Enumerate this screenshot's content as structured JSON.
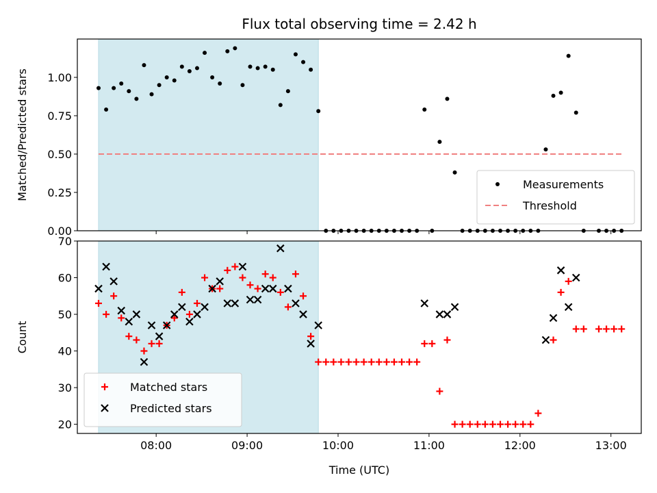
{
  "chart_data": [
    {
      "type": "scatter",
      "title": "Flux total observing time = 2.42 h",
      "xlabel": "",
      "ylabel": "Matched/Predicted stars",
      "xlim": [
        "07:08",
        "13:20"
      ],
      "ylim": [
        0,
        1.25
      ],
      "yticks": [
        "0.00",
        "0.25",
        "0.50",
        "0.75",
        "1.00"
      ],
      "legend_position": "lower-right",
      "shaded_interval": {
        "start": "07:22",
        "end": "09:47",
        "color": "#d3eaf0"
      },
      "series": [
        {
          "name": "Measurements",
          "marker": "dot",
          "color": "#000000",
          "points": [
            [
              "07:22",
              0.93
            ],
            [
              "07:27",
              0.79
            ],
            [
              "07:32",
              0.93
            ],
            [
              "07:37",
              0.96
            ],
            [
              "07:42",
              0.91
            ],
            [
              "07:47",
              0.86
            ],
            [
              "07:52",
              1.08
            ],
            [
              "07:57",
              0.89
            ],
            [
              "08:02",
              0.95
            ],
            [
              "08:07",
              1.0
            ],
            [
              "08:12",
              0.98
            ],
            [
              "08:17",
              1.07
            ],
            [
              "08:22",
              1.04
            ],
            [
              "08:27",
              1.06
            ],
            [
              "08:32",
              1.16
            ],
            [
              "08:37",
              1.0
            ],
            [
              "08:42",
              0.96
            ],
            [
              "08:47",
              1.17
            ],
            [
              "08:52",
              1.19
            ],
            [
              "08:57",
              0.95
            ],
            [
              "09:02",
              1.07
            ],
            [
              "09:07",
              1.06
            ],
            [
              "09:12",
              1.07
            ],
            [
              "09:17",
              1.05
            ],
            [
              "09:22",
              0.82
            ],
            [
              "09:27",
              0.91
            ],
            [
              "09:32",
              1.15
            ],
            [
              "09:37",
              1.1
            ],
            [
              "09:42",
              1.05
            ],
            [
              "09:47",
              0.78
            ],
            [
              "09:52",
              0.0
            ],
            [
              "09:57",
              0.0
            ],
            [
              "10:02",
              0.0
            ],
            [
              "10:07",
              0.0
            ],
            [
              "10:12",
              0.0
            ],
            [
              "10:17",
              0.0
            ],
            [
              "10:22",
              0.0
            ],
            [
              "10:27",
              0.0
            ],
            [
              "10:32",
              0.0
            ],
            [
              "10:37",
              0.0
            ],
            [
              "10:42",
              0.0
            ],
            [
              "10:47",
              0.0
            ],
            [
              "10:52",
              0.0
            ],
            [
              "10:57",
              0.79
            ],
            [
              "11:02",
              0.0
            ],
            [
              "11:07",
              0.58
            ],
            [
              "11:12",
              0.86
            ],
            [
              "11:17",
              0.38
            ],
            [
              "11:22",
              0.0
            ],
            [
              "11:27",
              0.0
            ],
            [
              "11:32",
              0.0
            ],
            [
              "11:37",
              0.0
            ],
            [
              "11:42",
              0.0
            ],
            [
              "11:47",
              0.0
            ],
            [
              "11:52",
              0.0
            ],
            [
              "11:57",
              0.0
            ],
            [
              "12:02",
              0.0
            ],
            [
              "12:07",
              0.0
            ],
            [
              "12:12",
              0.0
            ],
            [
              "12:17",
              0.53
            ],
            [
              "12:22",
              0.88
            ],
            [
              "12:27",
              0.9
            ],
            [
              "12:32",
              1.14
            ],
            [
              "12:37",
              0.77
            ],
            [
              "12:42",
              0.0
            ],
            [
              "12:52",
              0.0
            ],
            [
              "12:57",
              0.0
            ],
            [
              "13:02",
              0.0
            ],
            [
              "13:07",
              0.0
            ]
          ]
        },
        {
          "name": "Threshold",
          "marker": "dashed-line",
          "color": "#f08080",
          "points": [
            [
              "07:22",
              0.5
            ],
            [
              "13:07",
              0.5
            ]
          ]
        }
      ]
    },
    {
      "type": "scatter",
      "title": "",
      "xlabel": "Time (UTC)",
      "ylabel": "Count",
      "xlim": [
        "07:08",
        "13:20"
      ],
      "ylim": [
        17.5,
        70
      ],
      "yticks": [
        "20",
        "30",
        "40",
        "50",
        "60",
        "70"
      ],
      "xticks": [
        "08:00",
        "09:00",
        "10:00",
        "11:00",
        "12:00",
        "13:00"
      ],
      "legend_position": "lower-left",
      "shaded_interval": {
        "start": "07:22",
        "end": "09:47",
        "color": "#d3eaf0"
      },
      "series": [
        {
          "name": "Matched stars",
          "marker": "plus",
          "color": "#ff0000",
          "points": [
            [
              "07:22",
              53
            ],
            [
              "07:27",
              50
            ],
            [
              "07:32",
              55
            ],
            [
              "07:37",
              49
            ],
            [
              "07:42",
              44
            ],
            [
              "07:47",
              43
            ],
            [
              "07:52",
              40
            ],
            [
              "07:57",
              42
            ],
            [
              "08:02",
              42
            ],
            [
              "08:07",
              47
            ],
            [
              "08:12",
              49
            ],
            [
              "08:17",
              56
            ],
            [
              "08:22",
              50
            ],
            [
              "08:27",
              53
            ],
            [
              "08:32",
              60
            ],
            [
              "08:37",
              57
            ],
            [
              "08:42",
              57
            ],
            [
              "08:47",
              62
            ],
            [
              "08:52",
              63
            ],
            [
              "08:57",
              60
            ],
            [
              "09:02",
              58
            ],
            [
              "09:07",
              57
            ],
            [
              "09:12",
              61
            ],
            [
              "09:17",
              60
            ],
            [
              "09:22",
              56
            ],
            [
              "09:27",
              52
            ],
            [
              "09:32",
              61
            ],
            [
              "09:37",
              55
            ],
            [
              "09:42",
              44
            ],
            [
              "09:47",
              37
            ],
            [
              "09:52",
              37
            ],
            [
              "09:57",
              37
            ],
            [
              "10:02",
              37
            ],
            [
              "10:07",
              37
            ],
            [
              "10:12",
              37
            ],
            [
              "10:17",
              37
            ],
            [
              "10:22",
              37
            ],
            [
              "10:27",
              37
            ],
            [
              "10:32",
              37
            ],
            [
              "10:37",
              37
            ],
            [
              "10:42",
              37
            ],
            [
              "10:47",
              37
            ],
            [
              "10:52",
              37
            ],
            [
              "10:57",
              42
            ],
            [
              "11:02",
              42
            ],
            [
              "11:07",
              29
            ],
            [
              "11:12",
              43
            ],
            [
              "11:17",
              20
            ],
            [
              "11:22",
              20
            ],
            [
              "11:27",
              20
            ],
            [
              "11:32",
              20
            ],
            [
              "11:37",
              20
            ],
            [
              "11:42",
              20
            ],
            [
              "11:47",
              20
            ],
            [
              "11:52",
              20
            ],
            [
              "11:57",
              20
            ],
            [
              "12:02",
              20
            ],
            [
              "12:07",
              20
            ],
            [
              "12:12",
              23
            ],
            [
              "12:22",
              43
            ],
            [
              "12:27",
              56
            ],
            [
              "12:32",
              59
            ],
            [
              "12:37",
              46
            ],
            [
              "12:42",
              46
            ],
            [
              "12:52",
              46
            ],
            [
              "12:57",
              46
            ],
            [
              "13:02",
              46
            ],
            [
              "13:07",
              46
            ]
          ]
        },
        {
          "name": "Predicted stars",
          "marker": "x",
          "color": "#000000",
          "points": [
            [
              "07:22",
              57
            ],
            [
              "07:27",
              63
            ],
            [
              "07:32",
              59
            ],
            [
              "07:37",
              51
            ],
            [
              "07:42",
              48
            ],
            [
              "07:47",
              50
            ],
            [
              "07:52",
              37
            ],
            [
              "07:57",
              47
            ],
            [
              "08:02",
              44
            ],
            [
              "08:07",
              47
            ],
            [
              "08:12",
              50
            ],
            [
              "08:17",
              52
            ],
            [
              "08:22",
              48
            ],
            [
              "08:27",
              50
            ],
            [
              "08:32",
              52
            ],
            [
              "08:37",
              57
            ],
            [
              "08:42",
              59
            ],
            [
              "08:47",
              53
            ],
            [
              "08:52",
              53
            ],
            [
              "08:57",
              63
            ],
            [
              "09:02",
              54
            ],
            [
              "09:07",
              54
            ],
            [
              "09:12",
              57
            ],
            [
              "09:17",
              57
            ],
            [
              "09:22",
              68
            ],
            [
              "09:27",
              57
            ],
            [
              "09:32",
              53
            ],
            [
              "09:37",
              50
            ],
            [
              "09:42",
              42
            ],
            [
              "09:47",
              47
            ],
            [
              "10:57",
              53
            ],
            [
              "11:07",
              50
            ],
            [
              "11:12",
              50
            ],
            [
              "11:17",
              52
            ],
            [
              "12:17",
              43
            ],
            [
              "12:22",
              49
            ],
            [
              "12:27",
              62
            ],
            [
              "12:32",
              52
            ],
            [
              "12:37",
              60
            ]
          ]
        }
      ]
    }
  ]
}
